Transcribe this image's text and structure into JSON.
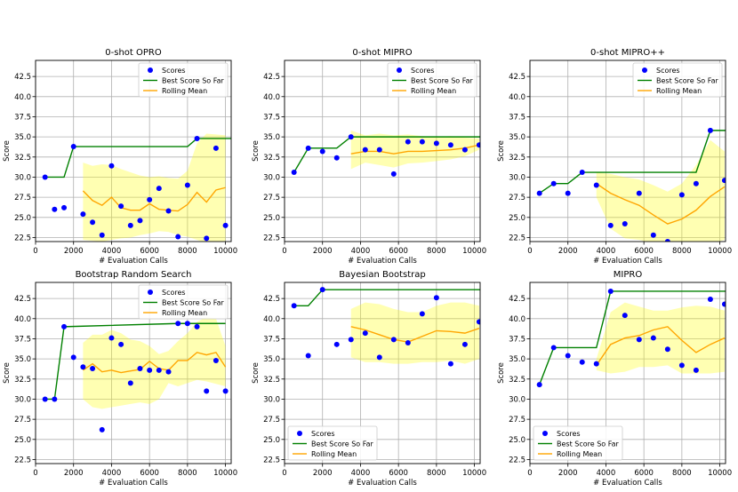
{
  "figure": {
    "x_label": "# Evaluation Calls",
    "y_label": "Score"
  },
  "chart_data": [
    {
      "type": "scatter",
      "title": "0-shot OPRO",
      "xlim": [
        0,
        10300
      ],
      "ylim": [
        22,
        44.5
      ],
      "xticks": [
        0,
        2000,
        4000,
        6000,
        8000,
        10000
      ],
      "yticks": [
        22.5,
        25.0,
        27.5,
        30.0,
        32.5,
        35.0,
        37.5,
        40.0,
        42.5
      ],
      "legend_position": "top-right",
      "legend": [
        "Scores",
        "Best Score So Far",
        "Rolling Mean"
      ],
      "scores": {
        "x": [
          500,
          1000,
          1500,
          2000,
          2500,
          3000,
          3500,
          4000,
          4500,
          5000,
          5500,
          6000,
          6500,
          7000,
          7500,
          8000,
          8500,
          9000,
          9500,
          10000
        ],
        "y": [
          30.0,
          26.0,
          26.2,
          33.8,
          25.4,
          24.4,
          22.8,
          31.4,
          26.4,
          24.0,
          24.6,
          27.2,
          28.6,
          25.8,
          22.6,
          29.0,
          34.8,
          22.4,
          33.6,
          24.0
        ]
      },
      "best_so_far": {
        "x": [
          500,
          1500,
          2000,
          8000,
          8500,
          10300
        ],
        "y": [
          30.0,
          30.0,
          33.8,
          33.8,
          34.8,
          34.8
        ]
      },
      "rolling_mean": {
        "x": [
          2500,
          3000,
          3500,
          4000,
          4500,
          5000,
          5500,
          6000,
          6500,
          7000,
          7500,
          8000,
          8500,
          9000,
          9500,
          10000
        ],
        "y": [
          28.3,
          27.1,
          26.5,
          27.5,
          26.2,
          25.9,
          25.9,
          26.7,
          26.0,
          25.9,
          25.8,
          26.6,
          28.1,
          26.9,
          28.4,
          28.7
        ],
        "lower": [
          22.2,
          22.1,
          22.0,
          22.2,
          22.4,
          22.5,
          22.8,
          23.0,
          23.3,
          23.2,
          22.8,
          22.6,
          22.2,
          21.8,
          21.9,
          22.1
        ],
        "upper": [
          31.8,
          31.4,
          31.6,
          31.5,
          31.0,
          30.6,
          30.2,
          30.0,
          30.1,
          29.9,
          29.8,
          30.8,
          34.2,
          35.4,
          35.3,
          35.2
        ]
      }
    },
    {
      "type": "scatter",
      "title": "0-shot MIPRO",
      "xlim": [
        0,
        10300
      ],
      "ylim": [
        22,
        44.5
      ],
      "xticks": [
        0,
        2000,
        4000,
        6000,
        8000,
        10000
      ],
      "yticks": [
        22.5,
        25.0,
        27.5,
        30.0,
        32.5,
        35.0,
        37.5,
        40.0,
        42.5
      ],
      "legend_position": "top-right",
      "legend": [
        "Scores",
        "Best Score So Far",
        "Rolling Mean"
      ],
      "scores": {
        "x": [
          500,
          1250,
          2000,
          2750,
          3500,
          4250,
          5000,
          5750,
          6500,
          7250,
          8000,
          8750,
          9500,
          10250
        ],
        "y": [
          30.6,
          33.6,
          33.2,
          32.4,
          35.0,
          33.4,
          33.4,
          30.4,
          34.4,
          34.4,
          34.2,
          34.0,
          33.4,
          34.0
        ]
      },
      "best_so_far": {
        "x": [
          500,
          1250,
          2750,
          3500,
          10300
        ],
        "y": [
          30.6,
          33.6,
          33.6,
          35.0,
          35.0
        ]
      },
      "rolling_mean": {
        "x": [
          3500,
          4250,
          5000,
          5750,
          6500,
          7250,
          8000,
          8750,
          9500,
          10250
        ],
        "y": [
          32.9,
          33.2,
          33.2,
          32.9,
          33.2,
          33.2,
          33.3,
          33.4,
          33.6,
          34.0
        ],
        "lower": [
          31.0,
          31.8,
          31.5,
          31.2,
          31.7,
          31.8,
          32.0,
          32.2,
          32.6,
          33.4
        ],
        "upper": [
          35.8,
          35.2,
          35.4,
          35.2,
          35.3,
          35.1,
          35.0,
          35.1,
          34.9,
          34.8
        ]
      }
    },
    {
      "type": "scatter",
      "title": "0-shot MIPRO++",
      "xlim": [
        0,
        10300
      ],
      "ylim": [
        22,
        44.5
      ],
      "xticks": [
        0,
        2000,
        4000,
        6000,
        8000,
        10000
      ],
      "yticks": [
        22.5,
        25.0,
        27.5,
        30.0,
        32.5,
        35.0,
        37.5,
        40.0,
        42.5
      ],
      "legend_position": "top-right",
      "legend": [
        "Scores",
        "Best Score So Far",
        "Rolling Mean"
      ],
      "scores": {
        "x": [
          500,
          1250,
          2000,
          2750,
          3500,
          4250,
          5000,
          5750,
          6500,
          7250,
          8000,
          8750,
          9500,
          10250
        ],
        "y": [
          28.0,
          29.2,
          28.0,
          30.6,
          29.0,
          24.0,
          24.2,
          28.0,
          22.8,
          22.0,
          27.8,
          29.2,
          35.8,
          29.6
        ]
      },
      "best_so_far": {
        "x": [
          500,
          1250,
          2000,
          2750,
          8750,
          9500,
          10300
        ],
        "y": [
          28.0,
          29.2,
          29.2,
          30.6,
          30.6,
          35.8,
          35.8
        ]
      },
      "rolling_mean": {
        "x": [
          3500,
          4250,
          5000,
          5750,
          6500,
          7250,
          8000,
          8750,
          9500,
          10250
        ],
        "y": [
          29.2,
          28.0,
          27.2,
          26.5,
          25.3,
          24.2,
          24.8,
          25.9,
          27.6,
          28.8
        ],
        "lower": [
          27.5,
          23.6,
          22.4,
          22.2,
          21.8,
          21.6,
          21.6,
          21.8,
          21.8,
          22.2
        ],
        "upper": [
          30.6,
          30.4,
          30.0,
          29.7,
          29.0,
          28.2,
          29.2,
          31.5,
          34.6,
          33.2
        ]
      }
    },
    {
      "type": "scatter",
      "title": "Bootstrap Random Search",
      "xlim": [
        0,
        10300
      ],
      "ylim": [
        22,
        44.5
      ],
      "xticks": [
        0,
        2000,
        4000,
        6000,
        8000,
        10000
      ],
      "yticks": [
        22.5,
        25.0,
        27.5,
        30.0,
        32.5,
        35.0,
        37.5,
        40.0,
        42.5
      ],
      "legend_position": "top-right",
      "legend": [
        "Scores",
        "Best Score So Far",
        "Rolling Mean"
      ],
      "scores": {
        "x": [
          500,
          1000,
          1500,
          2000,
          2500,
          3000,
          3500,
          4000,
          4500,
          5000,
          5500,
          6000,
          6500,
          7000,
          7500,
          8000,
          8500,
          9000,
          9500,
          10000
        ],
        "y": [
          30.0,
          30.0,
          39.0,
          35.2,
          34.0,
          33.8,
          26.2,
          37.6,
          36.8,
          32.0,
          33.8,
          33.6,
          33.6,
          33.4,
          39.4,
          39.4,
          39.0,
          31.0,
          34.8,
          31.0
        ]
      },
      "best_so_far": {
        "x": [
          500,
          1000,
          1500,
          7500,
          10000
        ],
        "y": [
          30.0,
          30.0,
          39.0,
          39.4,
          39.4
        ]
      },
      "rolling_mean": {
        "x": [
          2500,
          3000,
          3500,
          4000,
          4500,
          5000,
          5500,
          6000,
          6500,
          7000,
          7500,
          8000,
          8500,
          9000,
          9500,
          10000
        ],
        "y": [
          33.6,
          34.4,
          33.4,
          33.6,
          33.3,
          33.5,
          33.7,
          34.7,
          33.8,
          33.6,
          34.8,
          34.8,
          35.8,
          35.5,
          35.8,
          34.0
        ],
        "lower": [
          30.0,
          29.0,
          28.8,
          29.0,
          29.2,
          29.4,
          29.6,
          29.4,
          30.0,
          32.0,
          31.6,
          32.0,
          32.4,
          32.2,
          31.9,
          31.6
        ],
        "upper": [
          37.0,
          38.0,
          38.0,
          38.6,
          38.2,
          37.4,
          37.2,
          36.6,
          35.6,
          36.0,
          37.2,
          38.2,
          39.6,
          40.2,
          40.0,
          36.6
        ]
      }
    },
    {
      "type": "scatter",
      "title": "Bayesian Bootstrap",
      "xlim": [
        0,
        10300
      ],
      "ylim": [
        22,
        44.5
      ],
      "xticks": [
        0,
        2000,
        4000,
        6000,
        8000,
        10000
      ],
      "yticks": [
        22.5,
        25.0,
        27.5,
        30.0,
        32.5,
        35.0,
        37.5,
        40.0,
        42.5
      ],
      "legend_position": "bottom-left",
      "legend": [
        "Scores",
        "Best Score So Far",
        "Rolling Mean"
      ],
      "scores": {
        "x": [
          500,
          1250,
          2000,
          2750,
          3500,
          4250,
          5000,
          5750,
          6500,
          7250,
          8000,
          8750,
          9500,
          10250
        ],
        "y": [
          41.6,
          35.4,
          43.6,
          36.8,
          37.4,
          38.2,
          35.2,
          37.4,
          37.0,
          40.6,
          42.6,
          34.4,
          36.8,
          39.6
        ]
      },
      "best_so_far": {
        "x": [
          500,
          1250,
          2000,
          10300
        ],
        "y": [
          41.6,
          41.6,
          43.6,
          43.6
        ]
      },
      "rolling_mean": {
        "x": [
          3500,
          4250,
          5000,
          5750,
          6500,
          7250,
          8000,
          8750,
          9500,
          10250
        ],
        "y": [
          39.0,
          38.6,
          38.0,
          37.4,
          37.1,
          37.8,
          38.5,
          38.4,
          38.2,
          38.8
        ],
        "lower": [
          35.2,
          34.6,
          34.6,
          34.4,
          34.4,
          34.6,
          34.6,
          34.8,
          34.4,
          35.0
        ],
        "upper": [
          41.2,
          42.0,
          41.8,
          41.2,
          40.8,
          40.8,
          41.6,
          42.0,
          42.0,
          41.6
        ]
      }
    },
    {
      "type": "scatter",
      "title": "MIPRO",
      "xlim": [
        0,
        10300
      ],
      "ylim": [
        22,
        44.5
      ],
      "xticks": [
        0,
        2000,
        4000,
        6000,
        8000,
        10000
      ],
      "yticks": [
        22.5,
        25.0,
        27.5,
        30.0,
        32.5,
        35.0,
        37.5,
        40.0,
        42.5
      ],
      "legend_position": "bottom-left",
      "legend": [
        "Scores",
        "Best Score So Far",
        "Rolling Mean"
      ],
      "scores": {
        "x": [
          500,
          1250,
          2000,
          2750,
          3500,
          4250,
          5000,
          5750,
          6500,
          7250,
          8000,
          8750,
          9500,
          10250
        ],
        "y": [
          31.8,
          36.4,
          35.4,
          34.6,
          34.4,
          43.4,
          40.4,
          37.4,
          37.6,
          36.2,
          34.2,
          33.6,
          42.4,
          41.8
        ]
      },
      "best_so_far": {
        "x": [
          500,
          1250,
          3500,
          4250,
          10300
        ],
        "y": [
          31.8,
          36.4,
          36.4,
          43.4,
          43.4
        ]
      },
      "rolling_mean": {
        "x": [
          3500,
          4250,
          5000,
          5750,
          6500,
          7250,
          8000,
          8750,
          9500,
          10250
        ],
        "y": [
          34.2,
          36.8,
          37.6,
          37.9,
          38.6,
          39.0,
          37.3,
          35.8,
          36.8,
          37.6
        ],
        "lower": [
          33.6,
          33.2,
          33.4,
          34.0,
          34.0,
          34.2,
          33.2,
          33.2,
          33.2,
          33.4
        ],
        "upper": [
          35.0,
          40.8,
          42.0,
          41.5,
          41.0,
          41.0,
          41.4,
          41.6,
          41.5,
          41.0
        ]
      }
    }
  ]
}
